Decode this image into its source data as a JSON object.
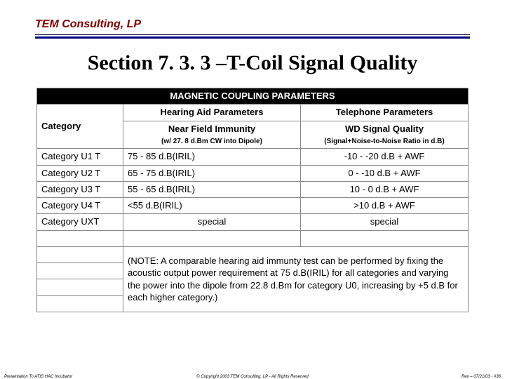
{
  "header": {
    "company": "TEM Consulting, LP"
  },
  "title": "Section 7. 3. 3 –T-Coil Signal Quality",
  "table": {
    "superhead": "MAGNETIC COUPLING PARAMETERS",
    "col0": "Category",
    "col1": "Hearing Aid Parameters",
    "col2": "Telephone Parameters",
    "sub1_a": "Near Field Immunity",
    "sub1_b": "(w/ 27. 8 d.Bm CW into Dipole)",
    "sub2_a": "WD Signal Quality",
    "sub2_b": "(Signal+Noise-to-Noise Ratio in d.B)",
    "rows": [
      {
        "c0": "Category U1 T",
        "c1": "75 - 85 d.B(IRIL)",
        "c2": "-10 - -20 d.B + AWF"
      },
      {
        "c0": "Category U2 T",
        "c1": "65 - 75 d.B(IRIL)",
        "c2": "0 - -10 d.B + AWF"
      },
      {
        "c0": "Category U3 T",
        "c1": "55 - 65 d.B(IRIL)",
        "c2": "10 - 0 d.B + AWF"
      },
      {
        "c0": "Category U4 T",
        "c1": "<55 d.B(IRIL)",
        "c2": ">10 d.B + AWF"
      },
      {
        "c0": "Category UXT",
        "c1": "special",
        "c2": "special"
      }
    ],
    "note": "(NOTE: A comparable hearing aid immunty test can be performed by fixing the acoustic output power requirement at 75 d.B(IRIL) for all categories and varying the power into the dipole from 22.8 d.Bm for category U0, increasing by +5 d.B for each higher category.)"
  },
  "footer": {
    "left": "Presentation To ATIS HAC Incubator",
    "center": "© Copyright 2003 TEM Consulting, LP - All Rights Reserved",
    "right": "Rev – 07/21/03 - #36"
  }
}
